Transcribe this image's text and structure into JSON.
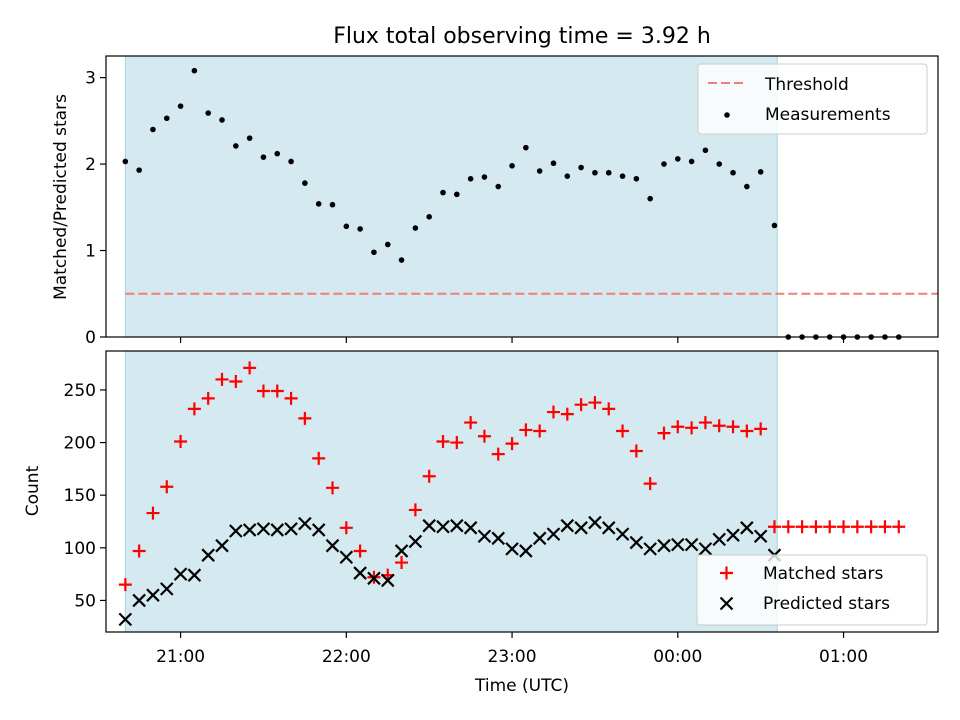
{
  "chart_data": [
    {
      "type": "scatter",
      "title": "Flux total observing time = 3.92 h",
      "ylabel": "Matched/Predicted stars",
      "ylim": [
        0,
        3.25
      ],
      "yticks": [
        0,
        1,
        2,
        3
      ],
      "xlim_hours": [
        20.55,
        25.57
      ],
      "xticks": [
        {
          "hour": 21,
          "label": "21:00"
        },
        {
          "hour": 22,
          "label": "22:00"
        },
        {
          "hour": 23,
          "label": "23:00"
        },
        {
          "hour": 24,
          "label": "00:00"
        },
        {
          "hour": 25,
          "label": "01:00"
        }
      ],
      "observing_window": {
        "start": "20:40",
        "end": "00:36",
        "color": "#d4eaf0"
      },
      "threshold": {
        "name": "Threshold",
        "value": 0.5,
        "x_start": "20:40",
        "x_end": "01:34",
        "color": "#f47b7b"
      },
      "legend": {
        "position": "upper right",
        "entries": [
          "Threshold",
          "Measurements"
        ]
      },
      "series": [
        {
          "name": "Measurements",
          "color": "#000000",
          "x": [
            "20:40",
            "20:45",
            "20:50",
            "20:55",
            "21:00",
            "21:05",
            "21:10",
            "21:15",
            "21:20",
            "21:25",
            "21:30",
            "21:35",
            "21:40",
            "21:45",
            "21:50",
            "21:55",
            "22:00",
            "22:05",
            "22:10",
            "22:15",
            "22:20",
            "22:25",
            "22:30",
            "22:35",
            "22:40",
            "22:45",
            "22:50",
            "22:55",
            "23:00",
            "23:05",
            "23:10",
            "23:15",
            "23:20",
            "23:25",
            "23:30",
            "23:35",
            "23:40",
            "23:45",
            "23:50",
            "23:55",
            "00:00",
            "00:05",
            "00:10",
            "00:15",
            "00:20",
            "00:25",
            "00:30",
            "00:35",
            "00:40",
            "00:45",
            "00:50",
            "00:55",
            "01:00",
            "01:05",
            "01:10",
            "01:15",
            "01:20"
          ],
          "y": [
            2.03,
            1.93,
            2.4,
            2.53,
            2.67,
            3.08,
            2.59,
            2.51,
            2.21,
            2.3,
            2.08,
            2.12,
            2.03,
            1.78,
            1.54,
            1.53,
            1.28,
            1.25,
            0.98,
            1.07,
            0.89,
            1.26,
            1.39,
            1.67,
            1.65,
            1.83,
            1.85,
            1.74,
            1.98,
            2.19,
            1.92,
            2.01,
            1.86,
            1.96,
            1.9,
            1.9,
            1.86,
            1.83,
            1.6,
            2.0,
            2.06,
            2.03,
            2.16,
            2.0,
            1.9,
            1.74,
            1.91,
            1.29,
            0.0,
            0.0,
            0.0,
            0.0,
            0.0,
            0.0,
            0.0,
            0.0,
            0.0
          ]
        }
      ]
    },
    {
      "type": "scatter",
      "xlabel": "Time (UTC)",
      "ylabel": "Count",
      "ylim": [
        20,
        287
      ],
      "yticks": [
        50,
        100,
        150,
        200,
        250
      ],
      "xlim_hours": [
        20.55,
        25.57
      ],
      "xticks": [
        {
          "hour": 21,
          "label": "21:00"
        },
        {
          "hour": 22,
          "label": "22:00"
        },
        {
          "hour": 23,
          "label": "23:00"
        },
        {
          "hour": 24,
          "label": "00:00"
        },
        {
          "hour": 25,
          "label": "01:00"
        }
      ],
      "observing_window": {
        "start": "20:40",
        "end": "00:36",
        "color": "#d4eaf0"
      },
      "legend": {
        "position": "lower right",
        "entries": [
          "Matched stars",
          "Predicted stars"
        ]
      },
      "x": [
        "20:40",
        "20:45",
        "20:50",
        "20:55",
        "21:00",
        "21:05",
        "21:10",
        "21:15",
        "21:20",
        "21:25",
        "21:30",
        "21:35",
        "21:40",
        "21:45",
        "21:50",
        "21:55",
        "22:00",
        "22:05",
        "22:10",
        "22:15",
        "22:20",
        "22:25",
        "22:30",
        "22:35",
        "22:40",
        "22:45",
        "22:50",
        "22:55",
        "23:00",
        "23:05",
        "23:10",
        "23:15",
        "23:20",
        "23:25",
        "23:30",
        "23:35",
        "23:40",
        "23:45",
        "23:50",
        "23:55",
        "00:00",
        "00:05",
        "00:10",
        "00:15",
        "00:20",
        "00:25",
        "00:30",
        "00:35",
        "00:40",
        "00:45",
        "00:50",
        "00:55",
        "01:00",
        "01:05",
        "01:10",
        "01:15",
        "01:20"
      ],
      "series": [
        {
          "name": "Matched stars",
          "marker": "plus",
          "color": "#ff0000",
          "y": [
            65,
            97,
            133,
            158,
            201,
            232,
            242,
            260,
            258,
            271,
            249,
            249,
            242,
            223,
            185,
            157,
            119,
            97,
            72,
            74,
            86,
            136,
            168,
            201,
            200,
            219,
            206,
            189,
            199,
            212,
            211,
            229,
            227,
            236,
            238,
            232,
            211,
            192,
            161,
            209,
            215,
            214,
            219,
            216,
            215,
            211,
            213,
            120,
            120,
            120,
            120,
            120,
            120,
            120,
            120,
            120,
            120
          ]
        },
        {
          "name": "Predicted stars",
          "marker": "x",
          "color": "#000000",
          "y": [
            32,
            50,
            55,
            61,
            75,
            74,
            93,
            102,
            116,
            117,
            118,
            117,
            118,
            123,
            117,
            102,
            91,
            76,
            71,
            69,
            97,
            106,
            121,
            120,
            121,
            119,
            111,
            109,
            99,
            97,
            109,
            113,
            121,
            119,
            124,
            119,
            113,
            105,
            99,
            102,
            103,
            103,
            99,
            108,
            112,
            119,
            111,
            93
          ]
        }
      ]
    }
  ]
}
